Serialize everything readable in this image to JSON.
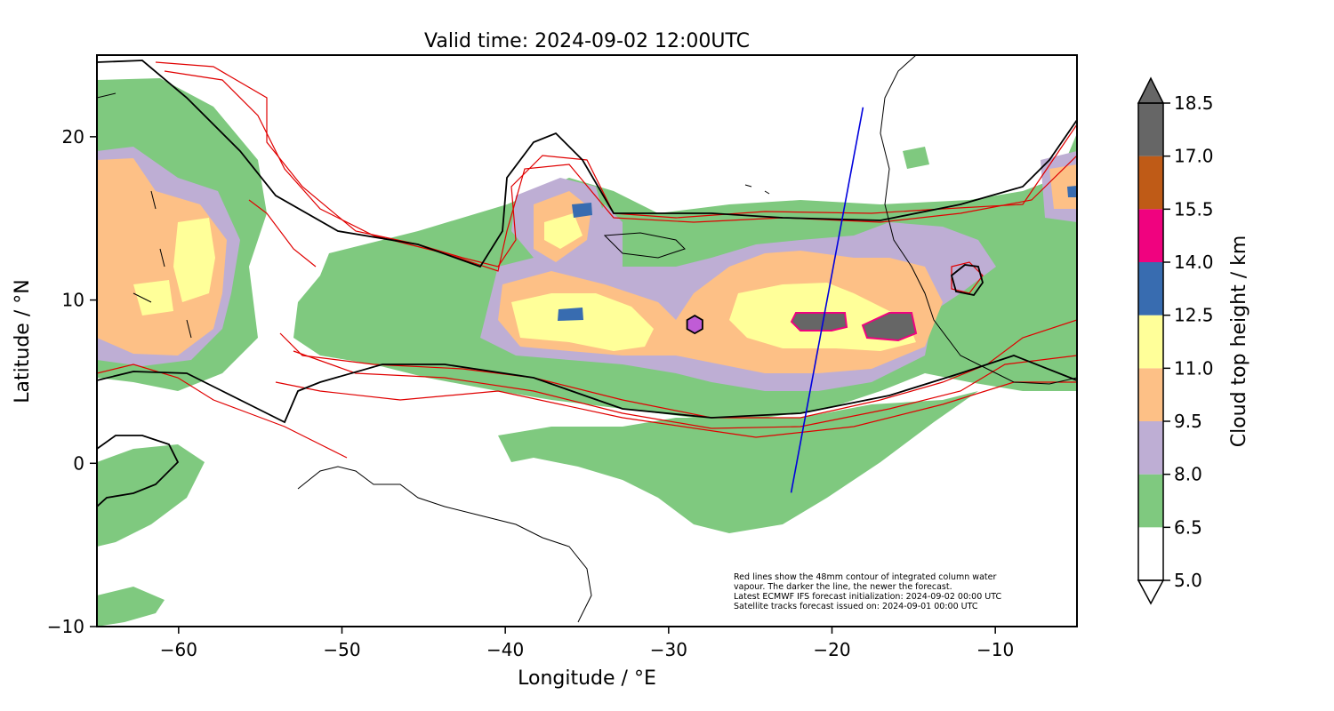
{
  "title": "Valid time: 2024-09-02 12:00UTC",
  "map": {
    "xlabel": "Longitude / °E",
    "ylabel": "Latitude / °N",
    "xlim": [
      -65,
      -5
    ],
    "ylim": [
      -10,
      25
    ],
    "xticks": [
      "−60",
      "−50",
      "−40",
      "−30",
      "−20",
      "−10"
    ],
    "yticks": [
      "−10",
      "0",
      "10",
      "20"
    ],
    "annotation_lines": [
      "Red lines show the 48mm contour of integrated column water",
      "vapour. The darker the line, the newer the forecast.",
      "Latest ECMWF IFS forecast initialization: 2024-09-02 00:00 UTC",
      "Satellite tracks forecast issued on: 2024-09-01 00:00 UTC"
    ],
    "satellite_track": {
      "start": [
        -22.5,
        -1.8
      ],
      "end": [
        -18.1,
        21.8
      ],
      "color": "#0000dd"
    },
    "marker": {
      "lon": -28.4,
      "lat": 8.5,
      "color": "#c05cd6",
      "shape": "hexagon"
    }
  },
  "colorbar": {
    "label": "Cloud top height / km",
    "levels": [
      "5.0",
      "6.5",
      "8.0",
      "9.5",
      "11.0",
      "12.5",
      "14.0",
      "15.5",
      "17.0",
      "18.5"
    ],
    "colors": [
      "#ffffff",
      "#7fc97f",
      "#beaed4",
      "#fdc086",
      "#ffff99",
      "#386cb0",
      "#f0027f",
      "#bf5b17",
      "#666666"
    ],
    "extend": "both"
  }
}
